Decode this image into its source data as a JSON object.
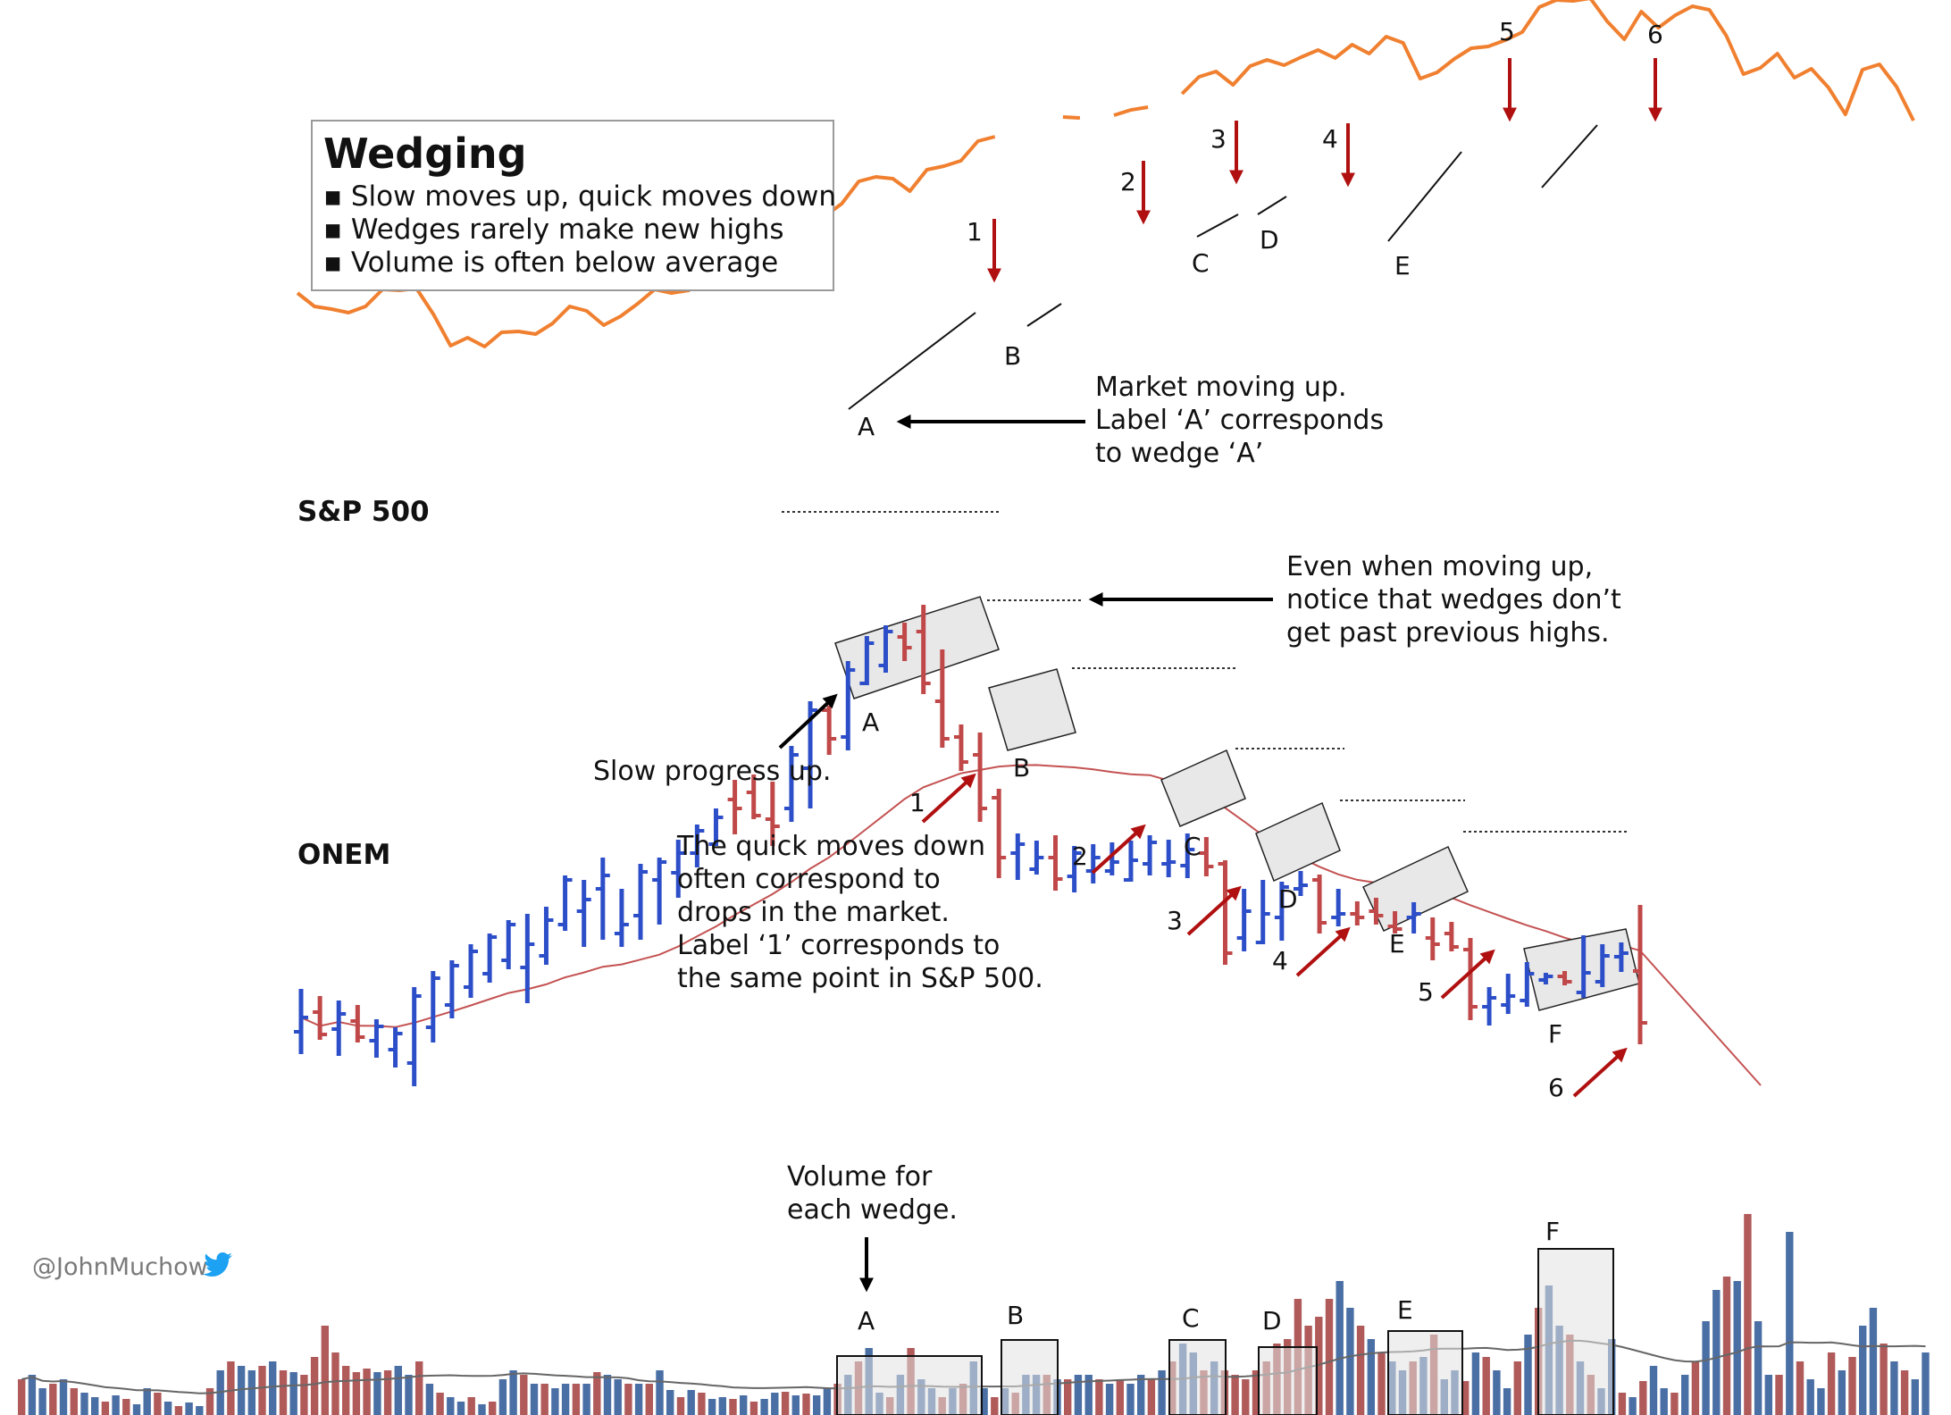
{
  "legend": {
    "title": "Wedging",
    "items": [
      "Slow moves up, quick moves down",
      "Wedges rarely make new highs",
      "Volume is often below average"
    ]
  },
  "labels": {
    "sp500": "S&P 500",
    "onem": "ONEM",
    "credit": "@JohnMuchow"
  },
  "annotations": {
    "market_up": [
      "Market moving up.",
      "Label ‘A’ corresponds",
      "to wedge ‘A’"
    ],
    "highs": [
      "Even when moving up,",
      "notice that wedges don’t",
      "get past previous highs."
    ],
    "slow_progress": "Slow progress up.",
    "quick_down": [
      "The quick moves down",
      "often correspond to",
      "drops in the market.",
      "Label ‘1’ corresponds to",
      "the same point in S&P 500."
    ],
    "volume": [
      "Volume for",
      "each wedge."
    ]
  },
  "colors": {
    "sp500_line": "#f08030",
    "up_bar": "#2c4ec8",
    "down_bar": "#c04848",
    "ma_line": "#c45252",
    "marker_arrow": "#b01010",
    "vol_blue": "#4a6fa5",
    "vol_red": "#b05a5a",
    "box_fill": "#e8e8e8",
    "twitter": "#1da1f2"
  },
  "chart_data": [
    {
      "type": "line",
      "title": "S&P 500",
      "series": [
        {
          "name": "S&P 500",
          "values": [
            372,
            357,
            354,
            350,
            357,
            376,
            375,
            377,
            348,
            313,
            322,
            312,
            328,
            329,
            326,
            338,
            357,
            352,
            336,
            346,
            360,
            376,
            372,
            375,
            392,
            412,
            414,
            398,
            413,
            432,
            426,
            458,
            472,
            497,
            502,
            500,
            486,
            510,
            514,
            520,
            542,
            547,
            null,
            null,
            null,
            569,
            568,
            null,
            571,
            577,
            580,
            null,
            595,
            614,
            620,
            605,
            626,
            633,
            627,
            636,
            644,
            635,
            650,
            640,
            659,
            652,
            612,
            619,
            634,
            646,
            648,
            655,
            664,
            692,
            700,
            699,
            702,
            676,
            656,
            687,
            669,
            683,
            693,
            689,
            660,
            617,
            624,
            640,
            613,
            623,
            602,
            572,
            622,
            628,
            603,
            565
          ]
        }
      ],
      "markers": [
        "1",
        "2",
        "3",
        "4",
        "5",
        "6"
      ],
      "wedge_labels": [
        "A",
        "B",
        "C",
        "D",
        "E"
      ]
    },
    {
      "type": "ohlc",
      "title": "ONEM",
      "wedge_labels": [
        "A",
        "B",
        "C",
        "D",
        "E",
        "F"
      ],
      "drop_labels": [
        "1",
        "2",
        "3",
        "4",
        "5",
        "6"
      ],
      "bars": [
        {
          "o": 130,
          "h": 178,
          "l": 105,
          "c": 146
        },
        {
          "o": 152,
          "h": 170,
          "l": 121,
          "c": 127
        },
        {
          "o": 133,
          "h": 165,
          "l": 103,
          "c": 150
        },
        {
          "o": 142,
          "h": 160,
          "l": 118,
          "c": 124
        },
        {
          "o": 120,
          "h": 144,
          "l": 101,
          "c": 136
        },
        {
          "o": 110,
          "h": 135,
          "l": 90,
          "c": 128
        },
        {
          "o": 95,
          "h": 180,
          "l": 69,
          "c": 170
        },
        {
          "o": 135,
          "h": 198,
          "l": 118,
          "c": 190
        },
        {
          "o": 160,
          "h": 210,
          "l": 145,
          "c": 204
        },
        {
          "o": 180,
          "h": 228,
          "l": 168,
          "c": 220
        },
        {
          "o": 195,
          "h": 240,
          "l": 185,
          "c": 236
        },
        {
          "o": 210,
          "h": 255,
          "l": 200,
          "c": 250
        },
        {
          "o": 202,
          "h": 262,
          "l": 162,
          "c": 228
        },
        {
          "o": 215,
          "h": 270,
          "l": 205,
          "c": 255
        },
        {
          "o": 250,
          "h": 305,
          "l": 243,
          "c": 300
        },
        {
          "o": 265,
          "h": 300,
          "l": 225,
          "c": 278
        },
        {
          "o": 290,
          "h": 325,
          "l": 233,
          "c": 305
        },
        {
          "o": 240,
          "h": 290,
          "l": 225,
          "c": 250
        },
        {
          "o": 260,
          "h": 318,
          "l": 233,
          "c": 309
        },
        {
          "o": 300,
          "h": 325,
          "l": 250,
          "c": 320
        },
        {
          "o": 308,
          "h": 345,
          "l": 280,
          "c": 330
        },
        {
          "o": 330,
          "h": 362,
          "l": 314,
          "c": 355
        },
        {
          "o": 340,
          "h": 380,
          "l": 338,
          "c": 370
        },
        {
          "o": 390,
          "h": 412,
          "l": 351,
          "c": 380
        },
        {
          "o": 398,
          "h": 418,
          "l": 368,
          "c": 372
        },
        {
          "o": 368,
          "h": 410,
          "l": 338,
          "c": 360
        },
        {
          "o": 380,
          "h": 450,
          "l": 365,
          "c": 440
        },
        {
          "o": 425,
          "h": 500,
          "l": 380,
          "c": 490
        },
        {
          "o": 490,
          "h": 495,
          "l": 440,
          "c": 458
        },
        {
          "o": 460,
          "h": 545,
          "l": 445,
          "c": 535
        },
        {
          "o": 520,
          "h": 573,
          "l": 518,
          "c": 565
        },
        {
          "o": 540,
          "h": 585,
          "l": 532,
          "c": 578
        },
        {
          "o": 572,
          "h": 588,
          "l": 545,
          "c": 560
        },
        {
          "o": 578,
          "h": 608,
          "l": 508,
          "c": 520
        },
        {
          "o": 500,
          "h": 558,
          "l": 448,
          "c": 458
        },
        {
          "o": 460,
          "h": 474,
          "l": 422,
          "c": 432
        },
        {
          "o": 440,
          "h": 465,
          "l": 365,
          "c": 380
        },
        {
          "o": 392,
          "h": 402,
          "l": 302,
          "c": 325
        },
        {
          "o": 330,
          "h": 352,
          "l": 300,
          "c": 340
        },
        {
          "o": 312,
          "h": 344,
          "l": 306,
          "c": 325
        },
        {
          "o": 325,
          "h": 350,
          "l": 288,
          "c": 301
        },
        {
          "o": 304,
          "h": 338,
          "l": 286,
          "c": 330
        },
        {
          "o": 310,
          "h": 340,
          "l": 296,
          "c": 325
        },
        {
          "o": 310,
          "h": 342,
          "l": 305,
          "c": 320
        },
        {
          "o": 300,
          "h": 344,
          "l": 298,
          "c": 322
        },
        {
          "o": 318,
          "h": 350,
          "l": 305,
          "c": 342
        },
        {
          "o": 318,
          "h": 345,
          "l": 303,
          "c": 320
        },
        {
          "o": 316,
          "h": 352,
          "l": 302,
          "c": 334
        },
        {
          "o": 330,
          "h": 348,
          "l": 304,
          "c": 315
        },
        {
          "o": 318,
          "h": 322,
          "l": 205,
          "c": 218
        },
        {
          "o": 235,
          "h": 290,
          "l": 220,
          "c": 265
        },
        {
          "o": 230,
          "h": 300,
          "l": 228,
          "c": 262
        },
        {
          "o": 258,
          "h": 298,
          "l": 232,
          "c": 292
        },
        {
          "o": 290,
          "h": 310,
          "l": 282,
          "c": 294
        },
        {
          "o": 300,
          "h": 306,
          "l": 240,
          "c": 252
        },
        {
          "o": 258,
          "h": 290,
          "l": 248,
          "c": 262
        },
        {
          "o": 262,
          "h": 276,
          "l": 249,
          "c": 258
        },
        {
          "o": 265,
          "h": 280,
          "l": 250,
          "c": 260
        },
        {
          "o": 248,
          "h": 265,
          "l": 240,
          "c": 245
        },
        {
          "o": 258,
          "h": 275,
          "l": 240,
          "c": 262
        },
        {
          "o": 235,
          "h": 258,
          "l": 210,
          "c": 228
        },
        {
          "o": 240,
          "h": 253,
          "l": 220,
          "c": 225
        },
        {
          "o": 222,
          "h": 235,
          "l": 143,
          "c": 158
        },
        {
          "o": 158,
          "h": 180,
          "l": 137,
          "c": 168
        },
        {
          "o": 160,
          "h": 195,
          "l": 150,
          "c": 170
        },
        {
          "o": 165,
          "h": 208,
          "l": 158,
          "c": 195
        },
        {
          "o": 188,
          "h": 196,
          "l": 183,
          "c": 192
        },
        {
          "o": 192,
          "h": 198,
          "l": 182,
          "c": 186
        },
        {
          "o": 174,
          "h": 238,
          "l": 168,
          "c": 196
        },
        {
          "o": 186,
          "h": 228,
          "l": 180,
          "c": 215
        },
        {
          "o": 214,
          "h": 230,
          "l": 197,
          "c": 218
        },
        {
          "o": 198,
          "h": 272,
          "l": 116,
          "c": 140
        }
      ]
    },
    {
      "type": "bar",
      "title": "Volume",
      "wedge_labels": [
        "A",
        "B",
        "C",
        "D",
        "E",
        "F"
      ],
      "values": [
        40,
        45,
        30,
        35,
        40,
        30,
        25,
        20,
        15,
        22,
        18,
        12,
        30,
        25,
        15,
        10,
        14,
        10,
        30,
        50,
        60,
        55,
        50,
        55,
        60,
        50,
        48,
        45,
        65,
        100,
        70,
        55,
        48,
        52,
        48,
        50,
        55,
        45,
        60,
        35,
        25,
        20,
        15,
        20,
        12,
        15,
        40,
        50,
        45,
        35,
        35,
        30,
        35,
        35,
        35,
        48,
        45,
        40,
        35,
        35,
        35,
        50,
        28,
        20,
        28,
        25,
        18,
        20,
        18,
        22,
        15,
        18,
        25,
        26,
        22,
        24,
        22,
        30,
        35,
        45,
        60,
        75,
        25,
        20,
        45,
        75,
        40,
        30,
        20,
        30,
        35,
        60,
        30,
        20,
        30,
        25,
        45,
        45,
        45,
        40,
        40,
        45,
        45,
        40,
        35,
        40,
        35,
        45,
        40,
        50,
        60,
        80,
        70,
        50,
        60,
        50,
        45,
        40,
        50,
        60,
        80,
        85,
        130,
        100,
        110,
        130,
        150,
        120,
        100,
        85,
        70,
        60,
        50,
        60,
        65,
        90,
        40,
        50,
        38,
        70,
        65,
        50,
        30,
        60,
        90,
        120,
        145,
        100,
        90,
        60,
        45,
        30,
        85,
        25,
        20,
        38,
        55,
        30,
        25,
        45,
        60,
        105,
        140,
        155,
        150,
        225,
        105,
        45,
        45,
        205,
        60,
        40,
        30,
        70,
        50,
        65,
        100,
        120,
        80,
        60,
        50,
        40,
        70
      ]
    }
  ]
}
